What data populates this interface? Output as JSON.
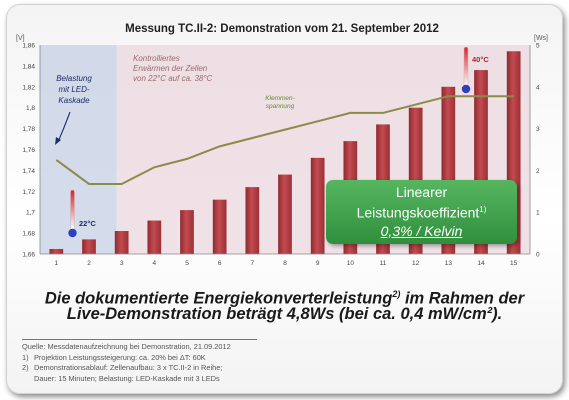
{
  "chart_data": {
    "type": "bar",
    "title": "Messung TC.II-2:  Demonstration vom 21. September 2012",
    "categories": [
      "1",
      "2",
      "3",
      "4",
      "5",
      "6",
      "7",
      "8",
      "9",
      "10",
      "11",
      "12",
      "13",
      "14",
      "15"
    ],
    "left_axis": {
      "unit": "[V]",
      "ylim": [
        1.66,
        1.86
      ],
      "ticks": [
        "1,66",
        "1,68",
        "1,7",
        "1,72",
        "1,74",
        "1,76",
        "1,78",
        "1,8",
        "1,82",
        "1,84",
        "1,86"
      ]
    },
    "right_axis": {
      "unit": "[Ws]",
      "ylim": [
        0,
        5
      ],
      "ticks": [
        "0",
        "1",
        "2",
        "3",
        "4",
        "5"
      ]
    },
    "series": [
      {
        "name": "",
        "type": "bar",
        "axis": "right",
        "color": "#b43a3f",
        "values": [
          0.12,
          0.35,
          0.55,
          0.8,
          1.05,
          1.3,
          1.6,
          1.9,
          2.3,
          2.7,
          3.1,
          3.5,
          4.0,
          4.4,
          4.85
        ]
      },
      {
        "name": "Klemmen-spannung",
        "type": "line",
        "axis": "left",
        "color": "#8b8b4a",
        "values": [
          1.75,
          1.727,
          1.727,
          1.743,
          1.751,
          1.763,
          1.771,
          1.779,
          1.787,
          1.795,
          1.795,
          1.803,
          1.811,
          1.811,
          1.811
        ]
      }
    ],
    "shaded_regions": [
      {
        "from": 0.5,
        "to": 2.85,
        "color": "#c6cfe3"
      },
      {
        "from": 2.85,
        "to": 15.5,
        "color": "#e9d7dd"
      }
    ],
    "annotations": {
      "belastung": "Belastung mit LED-Kaskade",
      "erwaermen": "Kontrolliertes Erwärmen der Zellen von 22°C auf ca. 38°C",
      "klemmen": "Klemmen-spannung",
      "temp_low": "22°C",
      "temp_high": "40°C"
    },
    "grid": false
  },
  "box": {
    "line1": "Linearer",
    "line2": "Leistungskoeffizient",
    "line2_sup": "1)",
    "line3": "0,3% / Kelvin"
  },
  "subtitle": {
    "line1_a": "Die dokumentierte Energiekonverterleistung",
    "line1_sup": "2)",
    "line1_b": " im Rahmen der",
    "line2": "Live-Demonstration beträgt 4,8Ws (bei ca. 0,4 mW/cm²)."
  },
  "notes": {
    "source": "Quelle: Messdatenaufzeichnung bei Demonstration, 21.09.2012",
    "n1_num": "1)",
    "n1": "Projektion Leistungssteigerung: ca. 20% bei ΔT: 60K",
    "n2_num": "2)",
    "n2a": "Demonstrationsablauf: Zellenaufbau: 3 x TC.II-2 in Reihe;",
    "n2b": "Dauer: 15 Minuten; Belastung: LED-Kaskade mit 3 LEDs"
  }
}
